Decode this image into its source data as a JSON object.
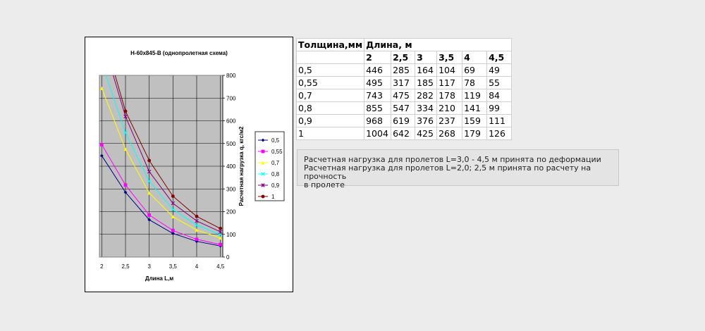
{
  "chart_data": {
    "type": "line",
    "title": "Н-60х845-В (однопролетная схема)",
    "xlabel": "Длина L,м",
    "ylabel": "Расчетная нагрузка q, кгс/м2",
    "x": [
      "2",
      "2,5",
      "3",
      "3,5",
      "4",
      "4,5"
    ],
    "xvals": [
      2,
      2.5,
      3,
      3.5,
      4,
      4.5
    ],
    "ylim": [
      0,
      800
    ],
    "yticks": [
      0,
      100,
      200,
      300,
      400,
      500,
      600,
      700,
      800
    ],
    "grid": true,
    "legend_position": "right",
    "series": [
      {
        "name": "0,5",
        "color": "#000080",
        "marker": "diamond",
        "values": [
          446,
          285,
          164,
          104,
          69,
          49
        ]
      },
      {
        "name": "0,55",
        "color": "#ff00ff",
        "marker": "square",
        "values": [
          495,
          317,
          185,
          117,
          78,
          55
        ]
      },
      {
        "name": "0,7",
        "color": "#ffff00",
        "marker": "triangle",
        "values": [
          743,
          475,
          282,
          178,
          119,
          84
        ]
      },
      {
        "name": "0,8",
        "color": "#00ffff",
        "marker": "x",
        "values": [
          855,
          547,
          334,
          210,
          141,
          99
        ]
      },
      {
        "name": "0,9",
        "color": "#800080",
        "marker": "star",
        "values": [
          968,
          619,
          376,
          237,
          159,
          111
        ]
      },
      {
        "name": "1",
        "color": "#800000",
        "marker": "circle",
        "values": [
          1004,
          642,
          425,
          268,
          179,
          126
        ]
      }
    ]
  },
  "table": {
    "header1": [
      "Толщина,мм",
      "Длина, м"
    ],
    "lengths": [
      "2",
      "2,5",
      "3",
      "3,5",
      "4",
      "4,5"
    ],
    "rows": [
      {
        "t": "0,5",
        "v": [
          "446",
          "285",
          "164",
          "104",
          "69",
          "49"
        ]
      },
      {
        "t": "0,55",
        "v": [
          "495",
          "317",
          "185",
          "117",
          "78",
          "55"
        ]
      },
      {
        "t": "0,7",
        "v": [
          "743",
          "475",
          "282",
          "178",
          "119",
          "84"
        ]
      },
      {
        "t": "0,8",
        "v": [
          "855",
          "547",
          "334",
          "210",
          "141",
          "99"
        ]
      },
      {
        "t": "0,9",
        "v": [
          "968",
          "619",
          "376",
          "237",
          "159",
          "111"
        ]
      },
      {
        "t": "1",
        "v": [
          "1004",
          "642",
          "425",
          "268",
          "179",
          "126"
        ]
      }
    ]
  },
  "note": {
    "line1": "Расчетная нагрузка для пролетов L=3,0 - 4,5 м принята по деформации",
    "line2": "Расчетная нагрузка для пролетов L=2,0; 2,5 м принята по расчету на прочность",
    "line3": "в пролете"
  }
}
